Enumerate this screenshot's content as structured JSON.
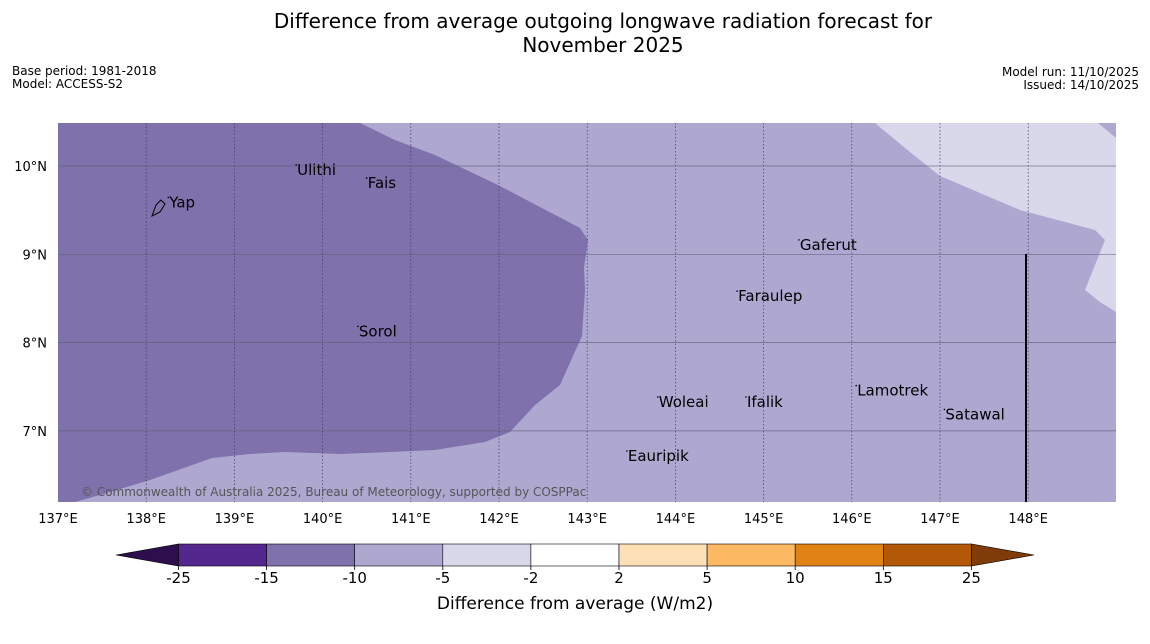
{
  "title_line1": "Difference from average outgoing longwave radiation forecast for",
  "title_line2": "November 2025",
  "base_period": "Base period: 1981-2018",
  "model": "Model: ACCESS-S2",
  "model_run": "Model run: 11/10/2025",
  "issued": "Issued: 14/10/2025",
  "copyright": "© Commonwealth of Australia 2025, Bureau of Meteorology, supported by COSPPac",
  "lon_labels": [
    "137°E",
    "138°E",
    "139°E",
    "140°E",
    "141°E",
    "142°E",
    "143°E",
    "144°E",
    "145°E",
    "146°E",
    "147°E",
    "148°E"
  ],
  "lat_labels": [
    "10°N",
    "9°N",
    "8°N",
    "7°N"
  ],
  "places": [
    {
      "name": "Yap",
      "lon": 138.25,
      "lat": 9.53
    },
    {
      "name": "Ulithi",
      "lon": 139.7,
      "lat": 9.9
    },
    {
      "name": "Fais",
      "lon": 140.5,
      "lat": 9.75
    },
    {
      "name": "Gaferut",
      "lon": 145.4,
      "lat": 9.05
    },
    {
      "name": "Faraulep",
      "lon": 144.7,
      "lat": 8.47
    },
    {
      "name": "Sorol",
      "lon": 140.4,
      "lat": 8.07
    },
    {
      "name": "Lamotrek",
      "lon": 146.05,
      "lat": 7.4
    },
    {
      "name": "Woleai",
      "lon": 143.8,
      "lat": 7.27
    },
    {
      "name": "Ifalik",
      "lon": 144.8,
      "lat": 7.27
    },
    {
      "name": "Satawal",
      "lon": 147.05,
      "lat": 7.13
    },
    {
      "name": "Eauripik",
      "lon": 143.45,
      "lat": 6.66
    }
  ],
  "colorbar": {
    "ticks": [
      "-25",
      "-15",
      "-10",
      "-5",
      "-2",
      "2",
      "5",
      "10",
      "15",
      "25"
    ],
    "colors": [
      "#54278f",
      "#7f71ab",
      "#aea8d1",
      "#d8d8ea",
      "#ffffff",
      "#fee0b6",
      "#fdb863",
      "#e08214",
      "#b35806"
    ],
    "under_color": "#2d0f4e",
    "over_color": "#7f3b08",
    "label": "Difference from average (W/m2)"
  },
  "field_colors": {
    "strong_below": "#7f71ab",
    "below": "#aea8d1",
    "slight_below": "#d8d8ea"
  }
}
